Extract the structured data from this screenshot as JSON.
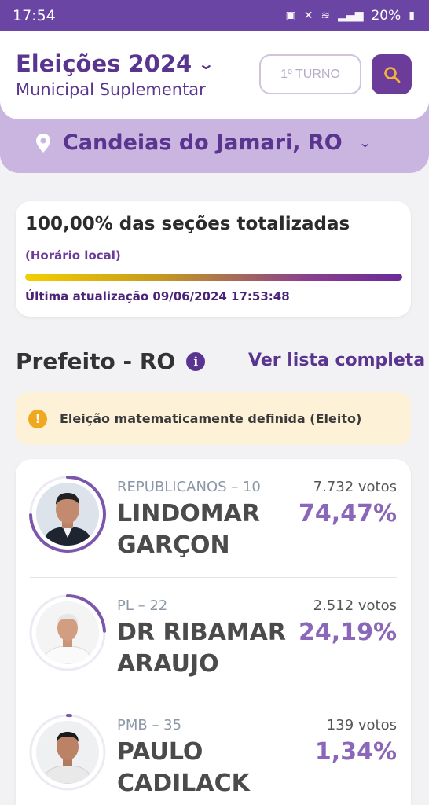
{
  "status_bar": {
    "time": "17:54",
    "battery": "20%"
  },
  "header": {
    "title": "Eleições 2024",
    "subtitle": "Municipal Suplementar",
    "turno_label": "1º TURNO"
  },
  "location": {
    "name": "Candeias do Jamari, RO"
  },
  "progress": {
    "title": "100,00% das seções totalizadas",
    "subtitle": "(Horário local)",
    "fraction": 1.0,
    "updated": "Última atualização 09/06/2024 17:53:48"
  },
  "section": {
    "title": "Prefeito - RO",
    "see_all": "Ver lista completa"
  },
  "alert": {
    "text": "Eleição matematicamente definida (Eleito)"
  },
  "candidates": [
    {
      "party": "REPUBLICANOS – 10",
      "name_line1": "LINDOMAR",
      "name_line2": "GARÇON",
      "votes": "7.732 votos",
      "pct": "74,47%",
      "share": 0.7447
    },
    {
      "party": "PL – 22",
      "name_line1": "DR RIBAMAR",
      "name_line2": "ARAUJO",
      "votes": "2.512 votos",
      "pct": "24,19%",
      "share": 0.2419
    },
    {
      "party": "PMB – 35",
      "name_line1": "PAULO",
      "name_line2": "CADILACK",
      "votes": "139 votos",
      "pct": "1,34%",
      "share": 0.0134
    }
  ],
  "colors": {
    "primary": "#5a3590",
    "accent": "#8a67b8",
    "alert": "#f0a91e"
  }
}
